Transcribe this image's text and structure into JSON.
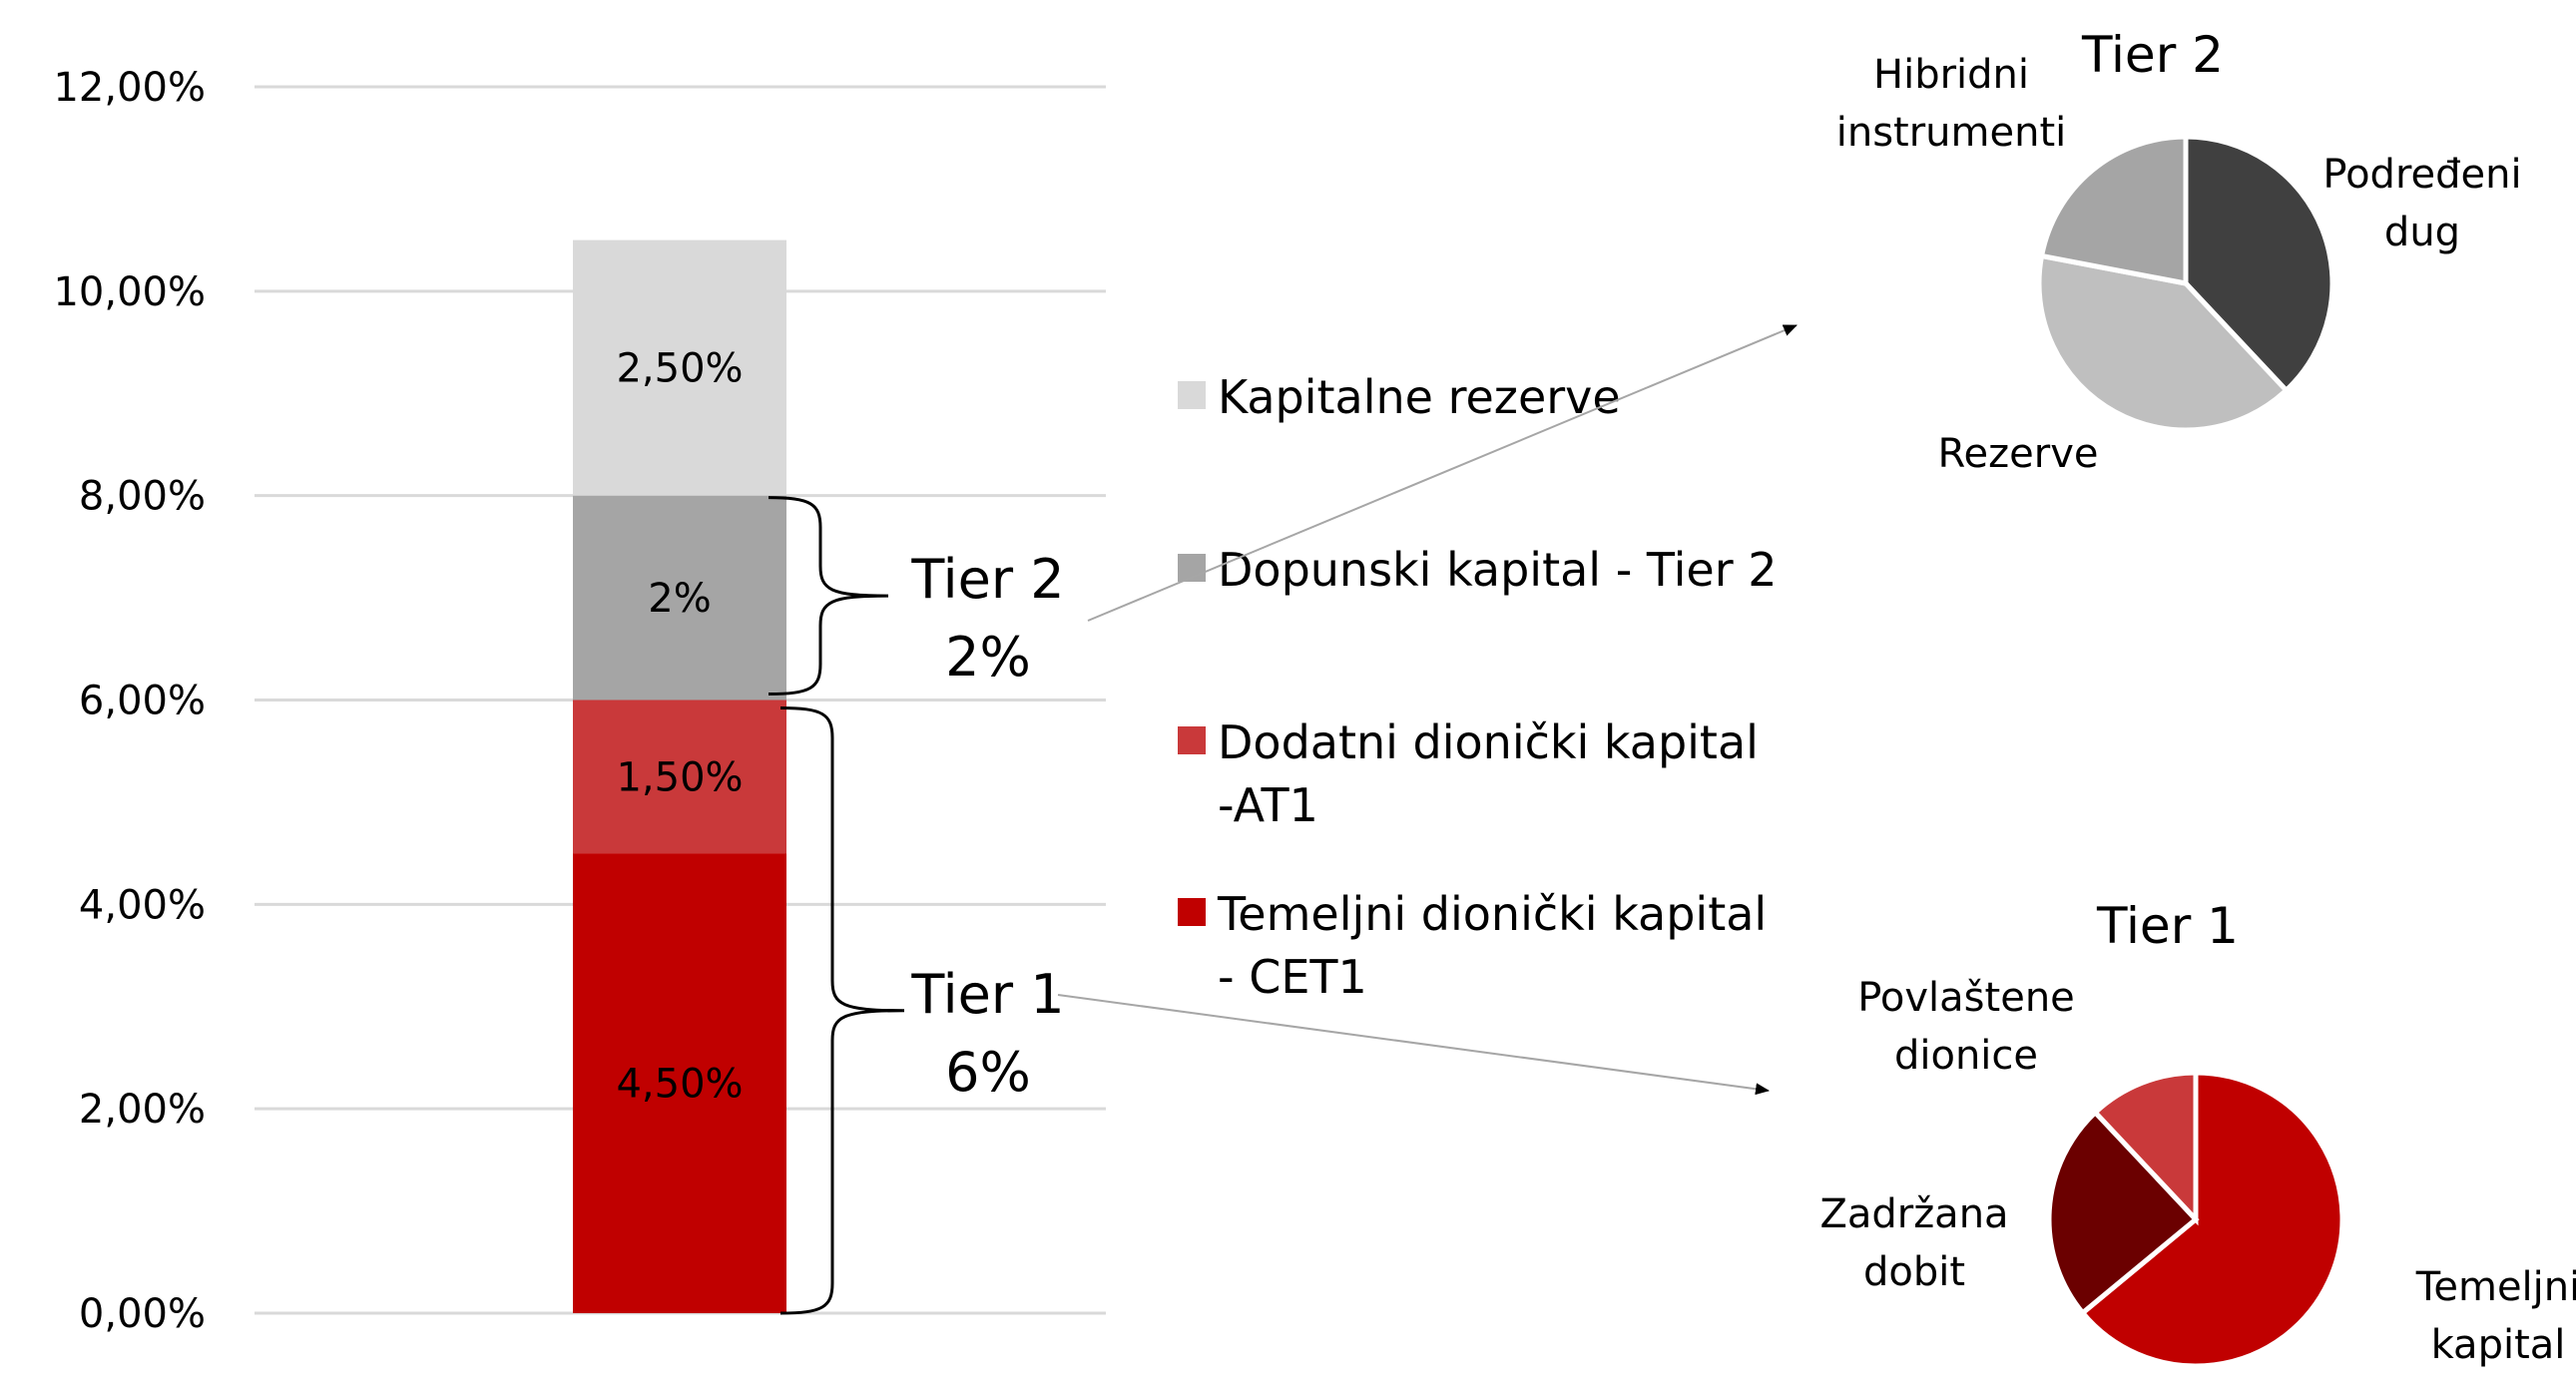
{
  "chart_data": [
    {
      "type": "stacked-bar",
      "ylim": [
        0,
        12
      ],
      "y_ticks": [
        0,
        2,
        4,
        6,
        8,
        10,
        12
      ],
      "y_tick_labels": [
        "0,00%",
        "2,00%",
        "4,00%",
        "6,00%",
        "8,00%",
        "10,00%",
        "12,00%"
      ],
      "grid": true,
      "series": [
        {
          "name": "Temeljni dionički kapital - CET1",
          "value": 4.5,
          "label": "4,50%",
          "color": "#C00000"
        },
        {
          "name": "Dodatni dionički kapital -AT1",
          "value": 1.5,
          "label": "1,50%",
          "color": "#C9393A"
        },
        {
          "name": "Dopunski kapital - Tier 2",
          "value": 2,
          "label": "2%",
          "color": "#A5A5A5"
        },
        {
          "name": "Kapitalne rezerve",
          "value": 2.5,
          "label": "2,50%",
          "color": "#D9D9D9"
        }
      ],
      "legend": [
        {
          "lines": [
            "Kapitalne rezerve"
          ],
          "color": "#D9D9D9"
        },
        {
          "lines": [
            "Dopunski kapital - Tier 2"
          ],
          "color": "#A5A5A5"
        },
        {
          "lines": [
            "Dodatni dionički kapital",
            "-AT1"
          ],
          "color": "#C9393A"
        },
        {
          "lines": [
            "Temeljni dionički kapital",
            "- CET1"
          ],
          "color": "#C00000"
        }
      ],
      "brackets": [
        {
          "from": 6,
          "to": 8,
          "label": "Tier 2",
          "sublabel": "2%"
        },
        {
          "from": 0,
          "to": 6,
          "label": "Tier 1",
          "sublabel": "6%"
        }
      ]
    },
    {
      "type": "pie",
      "title": "Tier 2",
      "slices": [
        {
          "label": [
            "Podređeni",
            "dug"
          ],
          "value": 38,
          "color": "#404040"
        },
        {
          "label": [
            "Rezerve"
          ],
          "value": 40,
          "color": "#BFBFBF"
        },
        {
          "label": [
            "Hibridni",
            "instrumenti"
          ],
          "value": 22,
          "color": "#A5A5A5"
        }
      ]
    },
    {
      "type": "pie",
      "title": "Tier 1",
      "slices": [
        {
          "label": [
            "Temeljni",
            "kapital"
          ],
          "value": 64,
          "color": "#C00000"
        },
        {
          "label": [
            "Zadržana",
            "dobit"
          ],
          "value": 24,
          "color": "#6B0000"
        },
        {
          "label": [
            "Povlaštene",
            "dionice"
          ],
          "value": 12,
          "color": "#C9393A"
        }
      ]
    }
  ]
}
